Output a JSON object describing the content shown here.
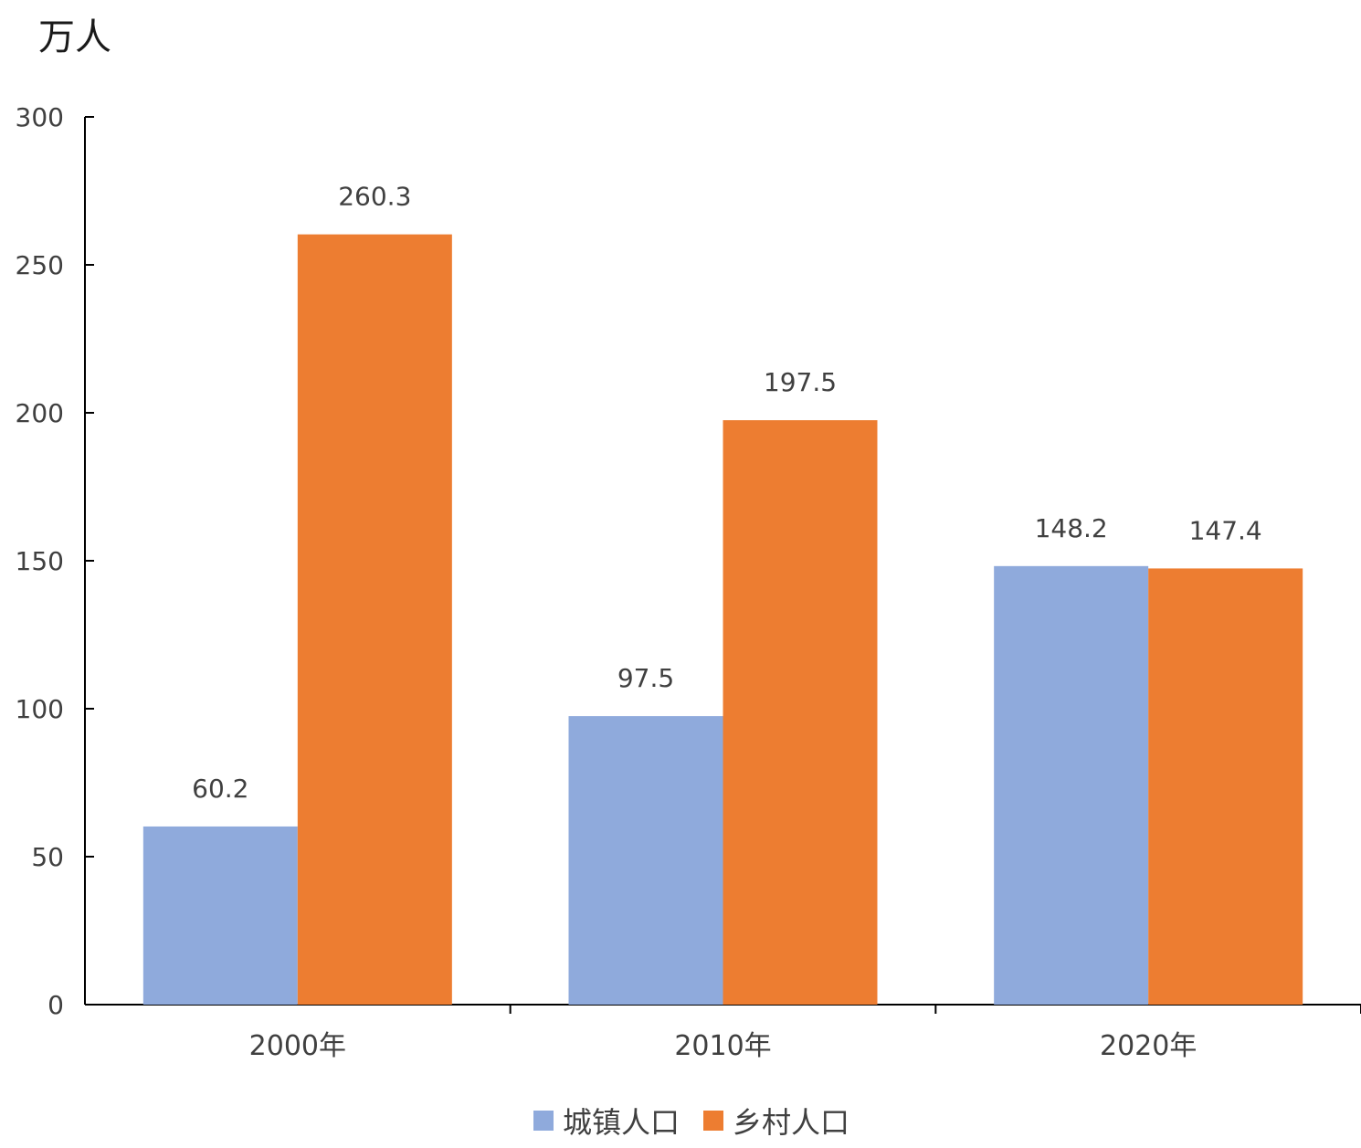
{
  "chart_data": {
    "type": "bar",
    "ylabel": "万人",
    "categories": [
      "2000年",
      "2010年",
      "2020年"
    ],
    "series": [
      {
        "name": "城镇人口",
        "values": [
          60.2,
          97.5,
          148.2
        ],
        "color": "#8FAADC"
      },
      {
        "name": "乡村人口",
        "values": [
          260.3,
          197.5,
          147.4
        ],
        "color": "#ED7D31"
      }
    ],
    "ylim": [
      0,
      300
    ],
    "yticks": [
      0,
      50,
      100,
      150,
      200,
      250,
      300
    ],
    "data_labels": [
      [
        "60.2",
        "97.5",
        "148.2"
      ],
      [
        "260.3",
        "197.5",
        "147.4"
      ]
    ],
    "grid": false,
    "legend_position": "bottom"
  }
}
